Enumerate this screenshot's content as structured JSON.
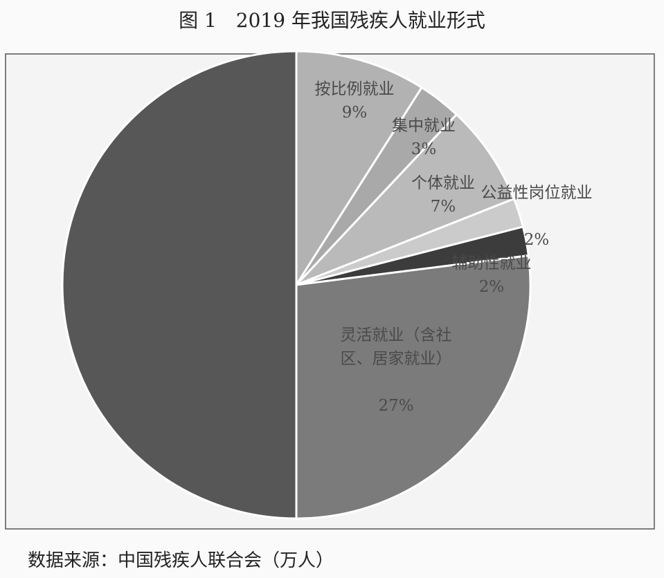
{
  "chart_data": {
    "type": "pie",
    "title": "图 1　2019 年我国残疾人就业形式",
    "source": "数据来源：中国残疾人联合会（万人）",
    "categories": [
      "按比例就业",
      "集中就业",
      "个体就业",
      "公益性岗位就业",
      "辅助性就业",
      "灵活就业（含社区、居家就业）",
      null
    ],
    "values": [
      9,
      3,
      7,
      2,
      2,
      27,
      50
    ],
    "value_labels": [
      "9%",
      "3%",
      "7%",
      "2%",
      "2%",
      "27%",
      null
    ],
    "colors": [
      "#b2b2b2",
      "#a9a9a9",
      "#bababa",
      "#cbcbcb",
      "#3c3c3c",
      "#7b7b7b",
      "#575757"
    ]
  }
}
